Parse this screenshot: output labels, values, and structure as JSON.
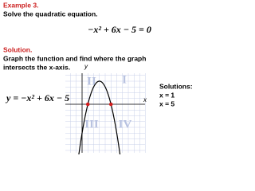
{
  "header": {
    "example": "Example 3.",
    "instruction": "Solve the quadratic equation."
  },
  "equation": "−x² + 6x − 5 = 0",
  "solution": {
    "label": "Solution.",
    "lines": [
      "Graph the function and find where the graph",
      "intersects the x-axis."
    ]
  },
  "graph": {
    "function": "y = −x² + 6x − 5",
    "y_axis": "y",
    "x_axis": "x",
    "quadrants": [
      "I",
      "II",
      "III",
      "IV"
    ]
  },
  "solutions": {
    "title": "Solutions:",
    "items": [
      "x = 1",
      "x = 5"
    ]
  }
}
